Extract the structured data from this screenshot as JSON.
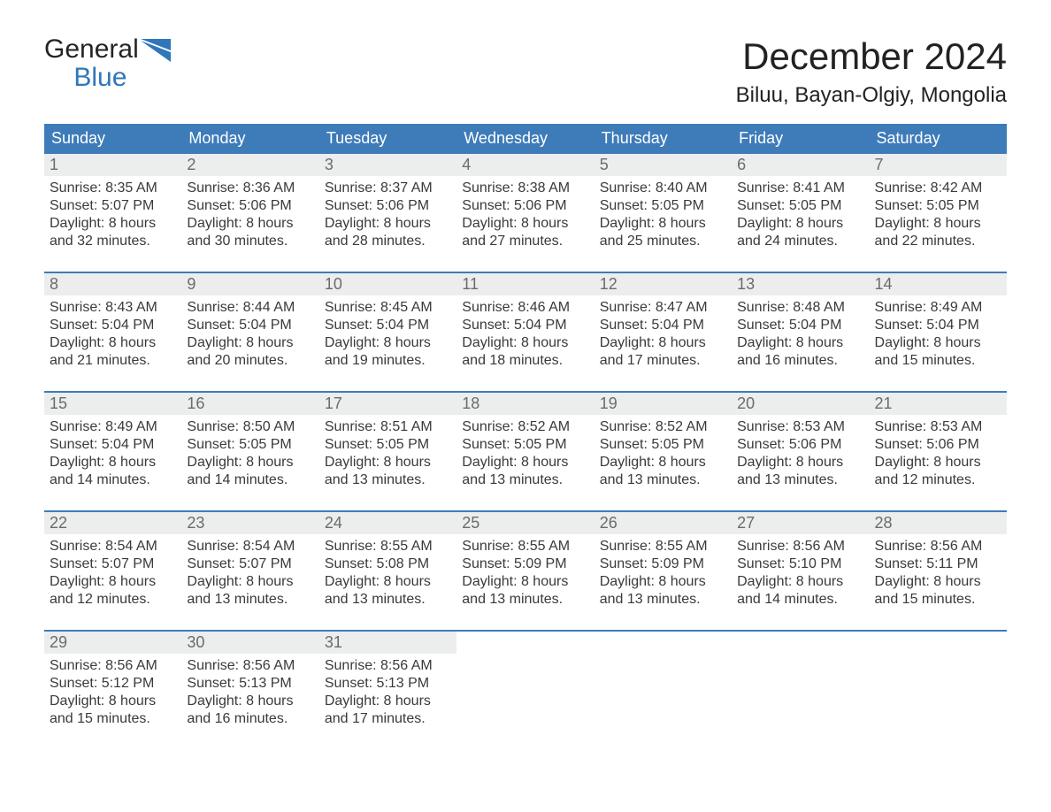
{
  "brand": {
    "line1": "General",
    "line2": "Blue"
  },
  "title": "December 2024",
  "location": "Biluu, Bayan-Olgiy, Mongolia",
  "style": {
    "header_bg": "#3e7cb9",
    "header_text": "#ffffff",
    "week_border": "#3e7cb9",
    "daynum_bg": "#eceded",
    "daynum_color": "#6b6b6b",
    "text_color": "#3a3a3a",
    "brand_blue": "#2f77ba",
    "background": "#ffffff",
    "title_fontsize": 42,
    "location_fontsize": 24,
    "header_fontsize": 18,
    "detail_fontsize": 16
  },
  "day_names": [
    "Sunday",
    "Monday",
    "Tuesday",
    "Wednesday",
    "Thursday",
    "Friday",
    "Saturday"
  ],
  "weeks": [
    [
      {
        "n": "1",
        "sr": "8:35 AM",
        "ss": "5:07 PM",
        "dm": "32"
      },
      {
        "n": "2",
        "sr": "8:36 AM",
        "ss": "5:06 PM",
        "dm": "30"
      },
      {
        "n": "3",
        "sr": "8:37 AM",
        "ss": "5:06 PM",
        "dm": "28"
      },
      {
        "n": "4",
        "sr": "8:38 AM",
        "ss": "5:06 PM",
        "dm": "27"
      },
      {
        "n": "5",
        "sr": "8:40 AM",
        "ss": "5:05 PM",
        "dm": "25"
      },
      {
        "n": "6",
        "sr": "8:41 AM",
        "ss": "5:05 PM",
        "dm": "24"
      },
      {
        "n": "7",
        "sr": "8:42 AM",
        "ss": "5:05 PM",
        "dm": "22"
      }
    ],
    [
      {
        "n": "8",
        "sr": "8:43 AM",
        "ss": "5:04 PM",
        "dm": "21"
      },
      {
        "n": "9",
        "sr": "8:44 AM",
        "ss": "5:04 PM",
        "dm": "20"
      },
      {
        "n": "10",
        "sr": "8:45 AM",
        "ss": "5:04 PM",
        "dm": "19"
      },
      {
        "n": "11",
        "sr": "8:46 AM",
        "ss": "5:04 PM",
        "dm": "18"
      },
      {
        "n": "12",
        "sr": "8:47 AM",
        "ss": "5:04 PM",
        "dm": "17"
      },
      {
        "n": "13",
        "sr": "8:48 AM",
        "ss": "5:04 PM",
        "dm": "16"
      },
      {
        "n": "14",
        "sr": "8:49 AM",
        "ss": "5:04 PM",
        "dm": "15"
      }
    ],
    [
      {
        "n": "15",
        "sr": "8:49 AM",
        "ss": "5:04 PM",
        "dm": "14"
      },
      {
        "n": "16",
        "sr": "8:50 AM",
        "ss": "5:05 PM",
        "dm": "14"
      },
      {
        "n": "17",
        "sr": "8:51 AM",
        "ss": "5:05 PM",
        "dm": "13"
      },
      {
        "n": "18",
        "sr": "8:52 AM",
        "ss": "5:05 PM",
        "dm": "13"
      },
      {
        "n": "19",
        "sr": "8:52 AM",
        "ss": "5:05 PM",
        "dm": "13"
      },
      {
        "n": "20",
        "sr": "8:53 AM",
        "ss": "5:06 PM",
        "dm": "13"
      },
      {
        "n": "21",
        "sr": "8:53 AM",
        "ss": "5:06 PM",
        "dm": "12"
      }
    ],
    [
      {
        "n": "22",
        "sr": "8:54 AM",
        "ss": "5:07 PM",
        "dm": "12"
      },
      {
        "n": "23",
        "sr": "8:54 AM",
        "ss": "5:07 PM",
        "dm": "13"
      },
      {
        "n": "24",
        "sr": "8:55 AM",
        "ss": "5:08 PM",
        "dm": "13"
      },
      {
        "n": "25",
        "sr": "8:55 AM",
        "ss": "5:09 PM",
        "dm": "13"
      },
      {
        "n": "26",
        "sr": "8:55 AM",
        "ss": "5:09 PM",
        "dm": "13"
      },
      {
        "n": "27",
        "sr": "8:56 AM",
        "ss": "5:10 PM",
        "dm": "14"
      },
      {
        "n": "28",
        "sr": "8:56 AM",
        "ss": "5:11 PM",
        "dm": "15"
      }
    ],
    [
      {
        "n": "29",
        "sr": "8:56 AM",
        "ss": "5:12 PM",
        "dm": "15"
      },
      {
        "n": "30",
        "sr": "8:56 AM",
        "ss": "5:13 PM",
        "dm": "16"
      },
      {
        "n": "31",
        "sr": "8:56 AM",
        "ss": "5:13 PM",
        "dm": "17"
      },
      null,
      null,
      null,
      null
    ]
  ],
  "labels": {
    "sunrise": "Sunrise:",
    "sunset": "Sunset:",
    "daylight_prefix": "Daylight: 8 hours",
    "daylight_and": "and",
    "daylight_suffix": "minutes."
  }
}
